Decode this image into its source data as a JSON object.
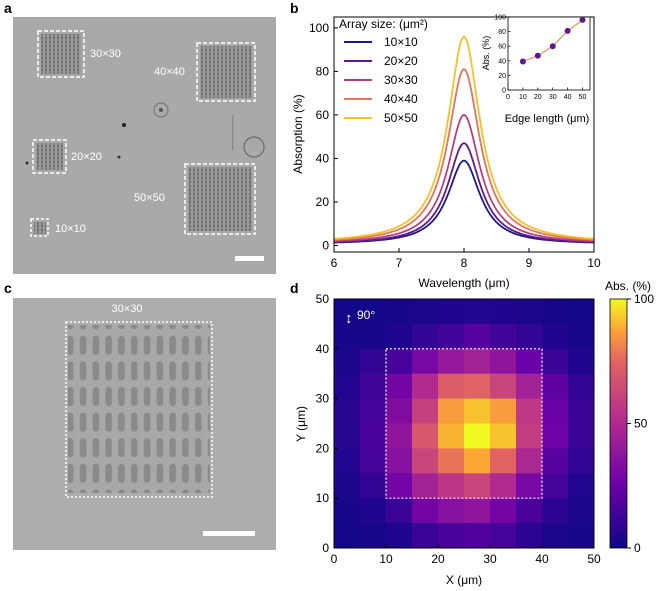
{
  "panel_labels": {
    "a": "a",
    "b": "b",
    "c": "c",
    "d": "d"
  },
  "panel_a": {
    "arrays": [
      {
        "label": "30×30"
      },
      {
        "label": "40×40"
      },
      {
        "label": "20×20"
      },
      {
        "label": "50×50"
      },
      {
        "label": "10×10"
      }
    ]
  },
  "panel_c": {
    "label": "30×30"
  },
  "chart_data": [
    {
      "type": "line",
      "panel": "b",
      "xlabel": "Wavelength (μm)",
      "ylabel": "Absorption (%)",
      "xlim": [
        6,
        10
      ],
      "ylim": [
        -3,
        105
      ],
      "xticks": [
        6,
        7,
        8,
        9,
        10
      ],
      "yticks": [
        0,
        20,
        40,
        60,
        80,
        100
      ],
      "legend_title": "Array size: (μm²)",
      "legend_position": "top-left",
      "series": [
        {
          "name": "10×10",
          "color": "#1a1a8c",
          "peak_x": 8.0,
          "peak_y": 39,
          "baseline": 0.5
        },
        {
          "name": "20×20",
          "color": "#5e1a8c",
          "peak_x": 8.0,
          "peak_y": 47,
          "baseline": 0.5
        },
        {
          "name": "30×30",
          "color": "#b5407f",
          "peak_x": 8.0,
          "peak_y": 60,
          "baseline": 0.7
        },
        {
          "name": "40×40",
          "color": "#e6735a",
          "peak_x": 8.0,
          "peak_y": 81,
          "baseline": 0.8
        },
        {
          "name": "50×50",
          "color": "#f5c02a",
          "peak_x": 8.0,
          "peak_y": 96,
          "baseline": 1.0
        }
      ],
      "inset": {
        "type": "scatter",
        "xlabel": "Edge length (μm)",
        "ylabel": "Abs. (%)",
        "xlim": [
          0,
          55
        ],
        "ylim": [
          0,
          100
        ],
        "xticks": [
          0,
          10,
          20,
          30,
          40,
          50
        ],
        "yticks": [
          0,
          20,
          40,
          60,
          80,
          100
        ],
        "x": [
          10,
          20,
          30,
          40,
          50
        ],
        "y": [
          39,
          47,
          60,
          81,
          96
        ],
        "marker_color": "#5e1a8c",
        "line_color": "#e8905a"
      }
    },
    {
      "type": "heatmap",
      "panel": "d",
      "xlabel": "X (μm)",
      "ylabel": "Y (μm)",
      "xlim": [
        0,
        50
      ],
      "ylim": [
        0,
        50
      ],
      "xticks": [
        0,
        10,
        20,
        30,
        40,
        50
      ],
      "yticks": [
        0,
        10,
        20,
        30,
        40,
        50
      ],
      "cell_size": 5,
      "polarization_label": "90°",
      "colorbar_title": "Abs. (%)",
      "colorbar_ticks": [
        0,
        50,
        100
      ],
      "colorbar_range": [
        0,
        100
      ],
      "dashed_region": [
        10,
        40,
        10,
        40
      ],
      "rows_top_to_bottom": [
        [
          2,
          2,
          3,
          4,
          5,
          6,
          5,
          4,
          3,
          2
        ],
        [
          3,
          3,
          5,
          10,
          14,
          20,
          14,
          10,
          5,
          3
        ],
        [
          4,
          10,
          15,
          30,
          40,
          45,
          38,
          25,
          12,
          5
        ],
        [
          6,
          14,
          28,
          50,
          72,
          74,
          62,
          45,
          22,
          10
        ],
        [
          7,
          15,
          33,
          60,
          86,
          92,
          86,
          56,
          25,
          12
        ],
        [
          7,
          16,
          38,
          70,
          90,
          100,
          92,
          58,
          26,
          12
        ],
        [
          6,
          15,
          35,
          62,
          78,
          88,
          75,
          48,
          20,
          10
        ],
        [
          4,
          10,
          28,
          45,
          55,
          62,
          50,
          30,
          15,
          6
        ],
        [
          3,
          5,
          12,
          28,
          35,
          38,
          28,
          16,
          8,
          4
        ],
        [
          2,
          3,
          5,
          12,
          16,
          18,
          15,
          8,
          4,
          3
        ]
      ]
    }
  ]
}
